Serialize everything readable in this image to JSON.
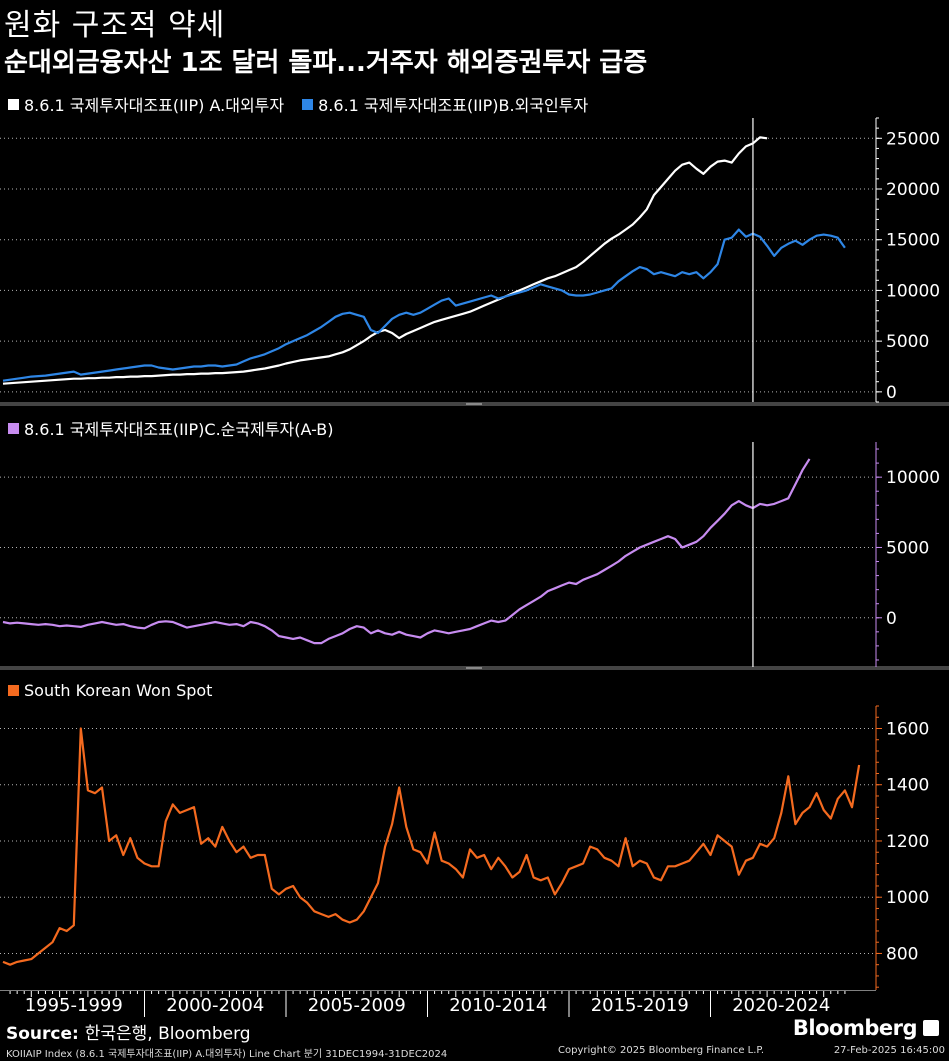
{
  "header": {
    "title": "원화 구조적 약세",
    "subtitle": "순대외금융자산 1조 달러 돌파...거주자 해외증권투자 급증"
  },
  "source": {
    "label": "Source:",
    "text": "한국은행, Bloomberg"
  },
  "brand": "Bloomberg",
  "footer": {
    "left": "KOIIAIP Index (8.6.1 국제투자대조표(IIP) A.대외투자) Line Chart  분기 31DEC1994-31DEC2024",
    "center": "Copyright© 2025 Bloomberg Finance L.P.",
    "right": "27-Feb-2025 16:45:00"
  },
  "colors": {
    "white": "#ffffff",
    "blue": "#2e86e6",
    "purple": "#c78cf0",
    "orange": "#f46a1f",
    "axis": "#ffffff"
  },
  "chart_data": [
    {
      "type": "line",
      "panel": "top",
      "title": "",
      "ylim": [
        -1000,
        27000
      ],
      "yticks": [
        0,
        5000,
        10000,
        15000,
        20000,
        25000
      ],
      "ytick_labels": [
        "0",
        "5000",
        "10000",
        "15000",
        "20000",
        "25000"
      ],
      "x_start": 1995.0,
      "x_step": 0.25,
      "legend_placement": "top-left",
      "series": [
        {
          "name": "8.6.1 국제투자대조표(IIP) A.대외투자",
          "color": "#ffffff",
          "values": [
            800,
            850,
            900,
            950,
            1000,
            1050,
            1100,
            1150,
            1200,
            1250,
            1300,
            1300,
            1350,
            1350,
            1400,
            1400,
            1450,
            1450,
            1500,
            1500,
            1550,
            1550,
            1600,
            1650,
            1700,
            1700,
            1750,
            1750,
            1800,
            1800,
            1850,
            1850,
            1900,
            1950,
            2000,
            2100,
            2200,
            2300,
            2450,
            2600,
            2800,
            2950,
            3100,
            3200,
            3300,
            3400,
            3500,
            3700,
            3900,
            4200,
            4600,
            5000,
            5500,
            5900,
            6100,
            5800,
            5300,
            5700,
            6000,
            6300,
            6600,
            6900,
            7100,
            7300,
            7500,
            7700,
            7900,
            8200,
            8500,
            8800,
            9100,
            9400,
            9700,
            10000,
            10300,
            10600,
            10900,
            11200,
            11400,
            11700,
            12000,
            12300,
            12800,
            13400,
            14000,
            14600,
            15100,
            15500,
            16000,
            16500,
            17200,
            18000,
            19400,
            20200,
            21000,
            21800,
            22400,
            22600,
            22000,
            21500,
            22200,
            22700,
            22800,
            22600,
            23500,
            24200,
            24500,
            25100,
            25000
          ]
        },
        {
          "name": "8.6.1 국제투자대조표(IIP)B.외국인투자",
          "color": "#2e86e6",
          "values": [
            1100,
            1200,
            1300,
            1400,
            1500,
            1550,
            1600,
            1700,
            1800,
            1900,
            2000,
            1700,
            1800,
            1900,
            2000,
            2100,
            2200,
            2300,
            2400,
            2500,
            2600,
            2600,
            2400,
            2300,
            2200,
            2300,
            2400,
            2500,
            2500,
            2600,
            2600,
            2500,
            2600,
            2700,
            3000,
            3300,
            3500,
            3700,
            4000,
            4300,
            4700,
            5000,
            5300,
            5600,
            6000,
            6400,
            6900,
            7400,
            7700,
            7800,
            7600,
            7400,
            6100,
            5800,
            6500,
            7200,
            7600,
            7800,
            7600,
            7800,
            8200,
            8600,
            9000,
            9200,
            8500,
            8700,
            8900,
            9100,
            9300,
            9500,
            9200,
            9400,
            9600,
            9800,
            10000,
            10300,
            10600,
            10400,
            10200,
            10000,
            9600,
            9500,
            9500,
            9600,
            9800,
            10000,
            10200,
            10900,
            11400,
            11900,
            12300,
            12100,
            11600,
            11800,
            11600,
            11400,
            11800,
            11600,
            11800,
            11200,
            11800,
            12600,
            15000,
            15200,
            16000,
            15300,
            15600,
            15300,
            14400,
            13400,
            14200,
            14600,
            14900,
            14500,
            15000,
            15400,
            15500,
            15400,
            15200,
            14200
          ]
        }
      ]
    },
    {
      "type": "line",
      "panel": "middle",
      "title": "",
      "ylim": [
        -3500,
        12500
      ],
      "yticks": [
        0,
        5000,
        10000
      ],
      "ytick_labels": [
        "0",
        "5000",
        "10000"
      ],
      "x_start": 1995.0,
      "x_step": 0.25,
      "legend_placement": "top-left",
      "series": [
        {
          "name": "8.6.1 국제투자대조표(IIP)C.순국제투자(A-B)",
          "color": "#c78cf0",
          "values": [
            -300,
            -400,
            -350,
            -400,
            -450,
            -500,
            -450,
            -500,
            -600,
            -550,
            -600,
            -650,
            -500,
            -400,
            -300,
            -400,
            -500,
            -450,
            -600,
            -700,
            -750,
            -500,
            -300,
            -250,
            -300,
            -500,
            -700,
            -600,
            -500,
            -400,
            -300,
            -400,
            -500,
            -450,
            -600,
            -300,
            -400,
            -600,
            -900,
            -1300,
            -1400,
            -1500,
            -1400,
            -1600,
            -1800,
            -1800,
            -1500,
            -1300,
            -1100,
            -800,
            -600,
            -700,
            -1100,
            -900,
            -1100,
            -1200,
            -1000,
            -1200,
            -1300,
            -1400,
            -1100,
            -900,
            -1000,
            -1100,
            -1000,
            -900,
            -800,
            -600,
            -400,
            -200,
            -300,
            -200,
            200,
            600,
            900,
            1200,
            1500,
            1900,
            2100,
            2300,
            2500,
            2400,
            2700,
            2900,
            3100,
            3400,
            3700,
            4000,
            4400,
            4700,
            5000,
            5200,
            5400,
            5600,
            5800,
            5600,
            5000,
            5200,
            5400,
            5800,
            6400,
            6900,
            7400,
            8000,
            8300,
            8000,
            7800,
            8100,
            8000,
            8100,
            8300,
            8500,
            9500,
            10500,
            11300
          ]
        }
      ]
    },
    {
      "type": "line",
      "panel": "bottom",
      "title": "",
      "ylim": [
        670,
        1680
      ],
      "yticks": [
        800,
        1000,
        1200,
        1400,
        1600
      ],
      "ytick_labels": [
        "800",
        "1000",
        "1200",
        "1400",
        "1600"
      ],
      "x_start": 1995.0,
      "x_step": 0.25,
      "legend_placement": "top-left",
      "series": [
        {
          "name": "South Korean Won Spot",
          "color": "#f46a1f",
          "values": [
            770,
            760,
            770,
            775,
            780,
            800,
            820,
            840,
            890,
            880,
            900,
            1600,
            1380,
            1370,
            1390,
            1200,
            1220,
            1150,
            1210,
            1140,
            1120,
            1110,
            1110,
            1270,
            1330,
            1300,
            1310,
            1320,
            1190,
            1210,
            1180,
            1250,
            1200,
            1160,
            1180,
            1140,
            1150,
            1150,
            1030,
            1010,
            1030,
            1040,
            1000,
            980,
            950,
            940,
            930,
            940,
            920,
            910,
            920,
            950,
            1000,
            1050,
            1180,
            1260,
            1390,
            1250,
            1170,
            1160,
            1120,
            1230,
            1130,
            1120,
            1100,
            1070,
            1170,
            1140,
            1150,
            1100,
            1140,
            1110,
            1070,
            1090,
            1150,
            1070,
            1060,
            1070,
            1010,
            1050,
            1100,
            1110,
            1120,
            1180,
            1170,
            1140,
            1130,
            1110,
            1210,
            1110,
            1130,
            1120,
            1070,
            1060,
            1110,
            1110,
            1120,
            1130,
            1160,
            1190,
            1150,
            1220,
            1200,
            1180,
            1080,
            1130,
            1140,
            1190,
            1180,
            1210,
            1300,
            1430,
            1260,
            1300,
            1320,
            1370,
            1310,
            1280,
            1350,
            1380,
            1320,
            1470
          ]
        }
      ]
    },
    {
      "type": "line",
      "panel": "x-axis",
      "categories": [
        "1995-1999",
        "2000-2004",
        "2005-2009",
        "2010-2014",
        "2015-2019",
        "2020-2024"
      ],
      "x_range": [
        1995,
        2025
      ],
      "vertical_marker_x": 2021.5
    }
  ]
}
